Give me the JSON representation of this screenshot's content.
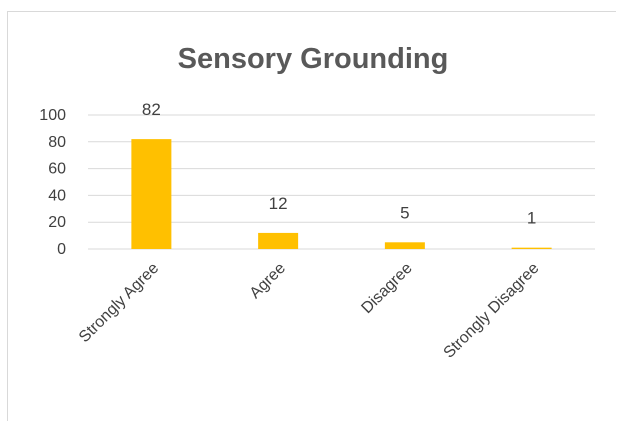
{
  "chart_data": {
    "type": "bar",
    "title": "Sensory Grounding",
    "categories": [
      "Strongly Agree",
      "Agree",
      "Disagree",
      "Strongly Disagree"
    ],
    "values": [
      82,
      12,
      5,
      1
    ],
    "data_labels": [
      "82",
      "12",
      "5",
      "1"
    ],
    "ylim": [
      0,
      100
    ],
    "yticks": [
      0,
      20,
      40,
      60,
      80,
      100
    ],
    "grid": true,
    "legend": "none",
    "colors": {
      "bar": "#FFC000",
      "grid": "#d9d9d9",
      "text": "#404040",
      "title": "#595959"
    }
  }
}
